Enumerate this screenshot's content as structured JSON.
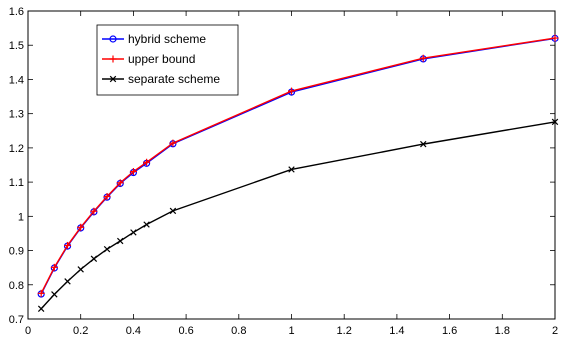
{
  "chart_data": {
    "type": "line",
    "title": "",
    "xlabel": "",
    "ylabel": "",
    "xlim": [
      0,
      2
    ],
    "ylim": [
      0.7,
      1.6
    ],
    "xticks": [
      0,
      0.2,
      0.4,
      0.6,
      0.8,
      1,
      1.2,
      1.4,
      1.6,
      1.8,
      2
    ],
    "yticks": [
      0.7,
      0.8,
      0.9,
      1,
      1.1,
      1.2,
      1.3,
      1.4,
      1.5,
      1.6
    ],
    "xtick_labels": [
      "0",
      "0.2",
      "0.4",
      "0.6",
      "0.8",
      "1",
      "1.2",
      "1.4",
      "1.6",
      "1.8",
      "2"
    ],
    "ytick_labels": [
      "0.7",
      "0.8",
      "0.9",
      "1",
      "1.1",
      "1.2",
      "1.3",
      "1.4",
      "1.5",
      "1.6"
    ],
    "grid": false,
    "legend_position": "top-left",
    "series": [
      {
        "name": "hybrid scheme",
        "color": "#0000ff",
        "marker": "circle",
        "x": [
          0.05,
          0.1,
          0.15,
          0.2,
          0.25,
          0.3,
          0.35,
          0.4,
          0.45,
          0.55,
          1,
          1.5,
          2
        ],
        "y": [
          0.773,
          0.849,
          0.913,
          0.966,
          1.013,
          1.056,
          1.096,
          1.128,
          1.155,
          1.212,
          1.363,
          1.46,
          1.52
        ]
      },
      {
        "name": "upper bound",
        "color": "#ff0000",
        "marker": "plus",
        "x": [
          0.05,
          0.1,
          0.15,
          0.2,
          0.25,
          0.3,
          0.35,
          0.4,
          0.45,
          0.55,
          1,
          1.5,
          2
        ],
        "y": [
          0.775,
          0.851,
          0.915,
          0.968,
          1.015,
          1.058,
          1.098,
          1.131,
          1.158,
          1.214,
          1.366,
          1.462,
          1.521
        ]
      },
      {
        "name": "separate scheme",
        "color": "#000000",
        "marker": "x",
        "x": [
          0.05,
          0.1,
          0.15,
          0.2,
          0.25,
          0.3,
          0.35,
          0.4,
          0.45,
          0.55,
          1,
          1.5,
          2
        ],
        "y": [
          0.73,
          0.772,
          0.81,
          0.845,
          0.876,
          0.904,
          0.928,
          0.953,
          0.976,
          1.016,
          1.137,
          1.211,
          1.276
        ]
      }
    ]
  }
}
